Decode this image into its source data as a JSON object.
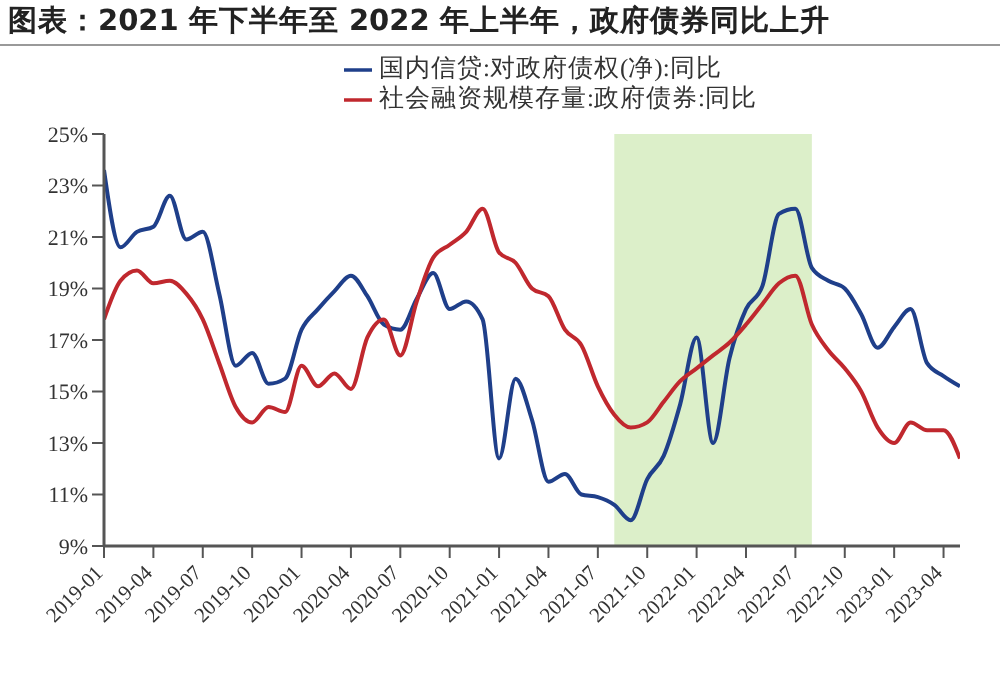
{
  "chart_data": {
    "type": "line",
    "title": "图表：2021 年下半年至 2022 年上半年，政府债券同比上升",
    "x": [
      "2019-01",
      "2019-02",
      "2019-03",
      "2019-04",
      "2019-05",
      "2019-06",
      "2019-07",
      "2019-08",
      "2019-09",
      "2019-10",
      "2019-11",
      "2019-12",
      "2020-01",
      "2020-02",
      "2020-03",
      "2020-04",
      "2020-05",
      "2020-06",
      "2020-07",
      "2020-08",
      "2020-09",
      "2020-10",
      "2020-11",
      "2020-12",
      "2021-01",
      "2021-02",
      "2021-03",
      "2021-04",
      "2021-05",
      "2021-06",
      "2021-07",
      "2021-08",
      "2021-09",
      "2021-10",
      "2021-11",
      "2021-12",
      "2022-01",
      "2022-02",
      "2022-03",
      "2022-04",
      "2022-05",
      "2022-06",
      "2022-07",
      "2022-08",
      "2022-09",
      "2022-10",
      "2022-11",
      "2022-12",
      "2023-01",
      "2023-02",
      "2023-03",
      "2023-04",
      "2023-05"
    ],
    "series": [
      {
        "name": "国内信贷:对政府债权(净):同比",
        "color": "#1f3f8a",
        "values": [
          23.6,
          20.6,
          21.2,
          21.4,
          22.6,
          20.9,
          21.2,
          18.8,
          16.0,
          16.5,
          15.3,
          15.5,
          17.4,
          18.2,
          18.9,
          19.5,
          18.7,
          17.6,
          17.4,
          18.6,
          19.6,
          18.2,
          18.5,
          17.8,
          12.4,
          15.5,
          13.9,
          11.5,
          11.8,
          11.0,
          10.9,
          10.6,
          10.0,
          11.6,
          12.5,
          14.5,
          17.1,
          13.0,
          16.3,
          18.2,
          19.1,
          21.9,
          22.1,
          19.8,
          19.3,
          19.0,
          18.0,
          16.7,
          17.5,
          18.2,
          16.1,
          15.6,
          15.2
        ]
      },
      {
        "name": "社会融资规模存量:政府债券:同比",
        "color": "#c0282e",
        "values": [
          17.8,
          19.3,
          19.7,
          19.2,
          19.3,
          18.8,
          17.8,
          16.1,
          14.4,
          13.8,
          14.4,
          14.2,
          16.0,
          15.2,
          15.7,
          15.1,
          17.1,
          17.8,
          16.4,
          18.5,
          20.2,
          20.7,
          21.2,
          22.1,
          20.4,
          20.0,
          19.0,
          18.7,
          17.4,
          16.8,
          15.2,
          14.1,
          13.6,
          13.8,
          14.6,
          15.4,
          15.9,
          16.4,
          16.9,
          17.6,
          18.4,
          19.2,
          19.5,
          17.6,
          16.6,
          15.9,
          15.0,
          13.6,
          13.0,
          13.8,
          13.5,
          13.5,
          12.4
        ]
      }
    ],
    "xlim": [
      "2019-01",
      "2023-05"
    ],
    "xticks": [
      "2019-01",
      "2019-04",
      "2019-07",
      "2019-10",
      "2020-01",
      "2020-04",
      "2020-07",
      "2020-10",
      "2021-01",
      "2021-04",
      "2021-07",
      "2021-10",
      "2022-01",
      "2022-04",
      "2022-07",
      "2022-10",
      "2023-01",
      "2023-04"
    ],
    "ylim": [
      9,
      25
    ],
    "yticks": [
      {
        "value": 9,
        "label": "9%"
      },
      {
        "value": 11,
        "label": "11%"
      },
      {
        "value": 13,
        "label": "13%"
      },
      {
        "value": 15,
        "label": "15%"
      },
      {
        "value": 17,
        "label": "17%"
      },
      {
        "value": 19,
        "label": "19%"
      },
      {
        "value": 21,
        "label": "21%"
      },
      {
        "value": 23,
        "label": "23%"
      },
      {
        "value": 25,
        "label": "25%"
      }
    ],
    "bands": [
      {
        "axis": "x",
        "from": "2021-08",
        "to": "2022-08",
        "color": "#dcefc9"
      }
    ],
    "grid": false,
    "legend": "top",
    "marker": "none",
    "line_style": "solid"
  }
}
